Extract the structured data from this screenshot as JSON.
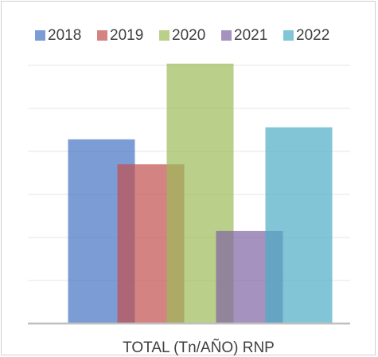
{
  "chart_data": {
    "type": "bar",
    "categories": [
      "TOTAL (Tn/AÑO) RNP"
    ],
    "series": [
      {
        "name": "2018",
        "color": "#4472c4",
        "values": [
          4.28
        ]
      },
      {
        "name": "2019",
        "color": "#c0504d",
        "values": [
          3.7
        ]
      },
      {
        "name": "2020",
        "color": "#9bbb59",
        "values": [
          6.04
        ]
      },
      {
        "name": "2021",
        "color": "#8064a2",
        "values": [
          2.15
        ]
      },
      {
        "name": "2022",
        "color": "#4bacc6",
        "values": [
          4.56
        ]
      }
    ],
    "ylim": [
      0,
      6.2
    ],
    "yticks": [
      0,
      1,
      2,
      3,
      4,
      5,
      6
    ],
    "grid": true,
    "legend": "top"
  }
}
